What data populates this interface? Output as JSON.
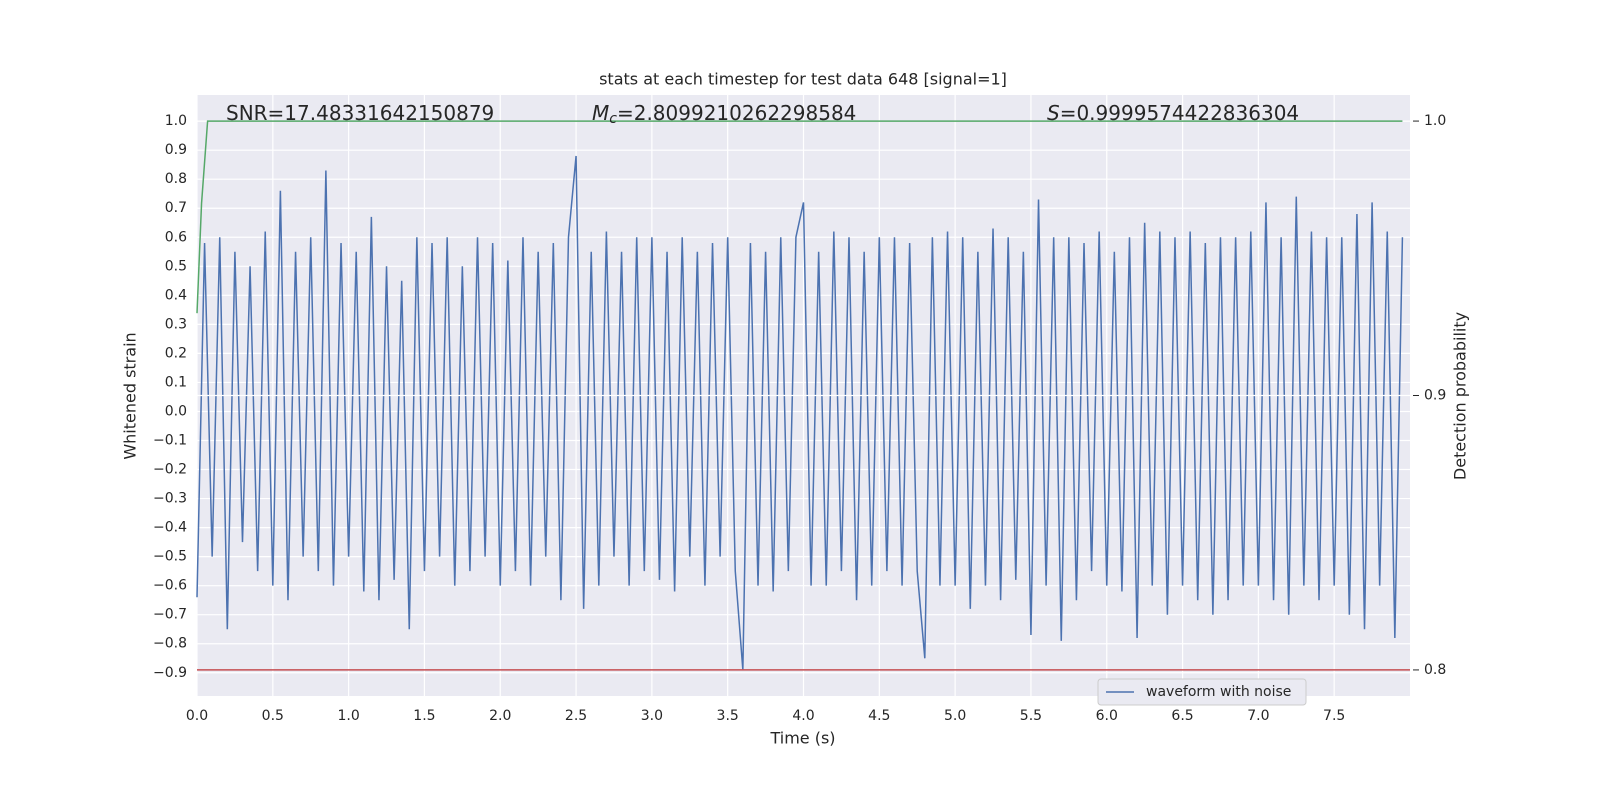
{
  "chart_data": {
    "type": "line",
    "title": "stats at each timestep for test data 648 [signal=1]",
    "xlabel": "Time (s)",
    "ylabel": "Whitened strain",
    "y2label": "Detection probability",
    "annotations": [
      {
        "text": "SNR=17.48331642150879"
      },
      {
        "symbol": "M",
        "subscript": "c",
        "text": "=2.8099210262298584"
      },
      {
        "symbol": "S",
        "text": "=0.9999574422836304"
      }
    ],
    "xlim": [
      0,
      8.0
    ],
    "ylim": [
      -0.98,
      1.09
    ],
    "y2lim": [
      0.7905,
      1.0095
    ],
    "xticks": [
      {
        "value": 0,
        "label": "0.0"
      },
      {
        "value": 0.5,
        "label": "0.5"
      },
      {
        "value": 1,
        "label": "1.0"
      },
      {
        "value": 1.5,
        "label": "1.5"
      },
      {
        "value": 2,
        "label": "2.0"
      },
      {
        "value": 2.5,
        "label": "2.5"
      },
      {
        "value": 3,
        "label": "3.0"
      },
      {
        "value": 3.5,
        "label": "3.5"
      },
      {
        "value": 4,
        "label": "4.0"
      },
      {
        "value": 4.5,
        "label": "4.5"
      },
      {
        "value": 5,
        "label": "5.0"
      },
      {
        "value": 5.5,
        "label": "5.5"
      },
      {
        "value": 6,
        "label": "6.0"
      },
      {
        "value": 6.5,
        "label": "6.5"
      },
      {
        "value": 7,
        "label": "7.0"
      },
      {
        "value": 7.5,
        "label": "7.5"
      }
    ],
    "yticks": [
      {
        "value": -0.9,
        "label": "−0.9"
      },
      {
        "value": -0.8,
        "label": "−0.8"
      },
      {
        "value": -0.7,
        "label": "−0.7"
      },
      {
        "value": -0.6,
        "label": "−0.6"
      },
      {
        "value": -0.5,
        "label": "−0.5"
      },
      {
        "value": -0.4,
        "label": "−0.4"
      },
      {
        "value": -0.3,
        "label": "−0.3"
      },
      {
        "value": -0.2,
        "label": "−0.2"
      },
      {
        "value": -0.1,
        "label": "−0.1"
      },
      {
        "value": 0,
        "label": "0.0"
      },
      0.1,
      0.2,
      0.3,
      0.4,
      0.5,
      0.6,
      0.7,
      0.8,
      0.9,
      {
        "value": 1,
        "label": "1.0"
      }
    ],
    "y2ticks": [
      0.8,
      0.9,
      {
        "value": 1,
        "label": "1.0"
      }
    ],
    "grid": true,
    "legend": "lower right",
    "series": [
      {
        "name": "waveform with noise",
        "color": "#4c72b0",
        "x": [
          0,
          0.05,
          0.1,
          0.15,
          0.2,
          0.25,
          0.3,
          0.35,
          0.4,
          0.45,
          0.5,
          0.55,
          0.6,
          0.65,
          0.7,
          0.75,
          0.8,
          0.85,
          0.9,
          0.95,
          1,
          1.05,
          1.1,
          1.15,
          1.2,
          1.25,
          1.3,
          1.35,
          1.4,
          1.45,
          1.5,
          1.55,
          1.6,
          1.65,
          1.7,
          1.75,
          1.8,
          1.85,
          1.9,
          1.95,
          2,
          2.05,
          2.1,
          2.15,
          2.2,
          2.25,
          2.3,
          2.35,
          2.4,
          2.45,
          2.5,
          2.55,
          2.6,
          2.65,
          2.7,
          2.75,
          2.8,
          2.85,
          2.9,
          2.95,
          3,
          3.05,
          3.1,
          3.15,
          3.2,
          3.25,
          3.3,
          3.35,
          3.4,
          3.45,
          3.5,
          3.55,
          3.6,
          3.65,
          3.7,
          3.75,
          3.8,
          3.85,
          3.9,
          3.95,
          4,
          4.05,
          4.1,
          4.15,
          4.2,
          4.25,
          4.3,
          4.35,
          4.4,
          4.45,
          4.5,
          4.55,
          4.6,
          4.65,
          4.7,
          4.75,
          4.8,
          4.85,
          4.9,
          4.95,
          5,
          5.05,
          5.1,
          5.15,
          5.2,
          5.25,
          5.3,
          5.35,
          5.4,
          5.45,
          5.5,
          5.55,
          5.6,
          5.65,
          5.7,
          5.75,
          5.8,
          5.85,
          5.9,
          5.95,
          6,
          6.05,
          6.1,
          6.15,
          6.2,
          6.25,
          6.3,
          6.35,
          6.4,
          6.45,
          6.5,
          6.55,
          6.6,
          6.65,
          6.7,
          6.75,
          6.8,
          6.85,
          6.9,
          6.95,
          7,
          7.05,
          7.1,
          7.15,
          7.2,
          7.25,
          7.3,
          7.35,
          7.4,
          7.45,
          7.5,
          7.55,
          7.6,
          7.65,
          7.7,
          7.75,
          7.8,
          7.85,
          7.9,
          7.95
        ],
        "values": [
          -0.64,
          0.58,
          -0.5,
          0.6,
          -0.75,
          0.55,
          -0.45,
          0.5,
          -0.55,
          0.62,
          -0.6,
          0.76,
          -0.65,
          0.55,
          -0.5,
          0.6,
          -0.55,
          0.83,
          -0.6,
          0.58,
          -0.5,
          0.55,
          -0.62,
          0.67,
          -0.65,
          0.5,
          -0.58,
          0.45,
          -0.75,
          0.6,
          -0.55,
          0.58,
          -0.5,
          0.6,
          -0.6,
          0.5,
          -0.55,
          0.6,
          -0.5,
          0.58,
          -0.6,
          0.52,
          -0.55,
          0.6,
          -0.6,
          0.55,
          -0.5,
          0.58,
          -0.65,
          0.6,
          0.88,
          -0.68,
          0.55,
          -0.6,
          0.62,
          -0.5,
          0.55,
          -0.6,
          0.6,
          -0.55,
          0.6,
          -0.58,
          0.55,
          -0.62,
          0.6,
          -0.5,
          0.55,
          -0.6,
          0.58,
          -0.5,
          0.6,
          -0.55,
          -0.89,
          0.58,
          -0.6,
          0.55,
          -0.62,
          0.6,
          -0.55,
          0.6,
          0.72,
          -0.6,
          0.55,
          -0.6,
          0.62,
          -0.55,
          0.6,
          -0.65,
          0.55,
          -0.6,
          0.6,
          -0.55,
          0.6,
          -0.6,
          0.58,
          -0.55,
          -0.85,
          0.6,
          -0.6,
          0.62,
          -0.6,
          0.6,
          -0.68,
          0.55,
          -0.6,
          0.63,
          -0.65,
          0.6,
          -0.58,
          0.55,
          -0.77,
          0.73,
          -0.6,
          0.6,
          -0.79,
          0.6,
          -0.65,
          0.58,
          -0.55,
          0.62,
          -0.6,
          0.55,
          -0.62,
          0.6,
          -0.78,
          0.65,
          -0.6,
          0.62,
          -0.7,
          0.6,
          -0.6,
          0.62,
          -0.65,
          0.58,
          -0.7,
          0.6,
          -0.65,
          0.6,
          -0.6,
          0.62,
          -0.6,
          0.72,
          -0.65,
          0.6,
          -0.7,
          0.74,
          -0.6,
          0.62,
          -0.65,
          0.6,
          -0.6,
          0.6,
          -0.7,
          0.68,
          -0.75,
          0.72,
          -0.6,
          0.62,
          -0.78,
          0.6
        ]
      }
    ],
    "detection": {
      "color": "#55a868",
      "axis": "y2",
      "x": [
        0,
        0.03,
        0.07,
        0.1,
        7.95
      ],
      "values": [
        0.93,
        0.97,
        1.0,
        1.0,
        1.0
      ]
    },
    "threshold": {
      "color": "#c44e52",
      "axis": "y2",
      "value": 0.8
    }
  }
}
